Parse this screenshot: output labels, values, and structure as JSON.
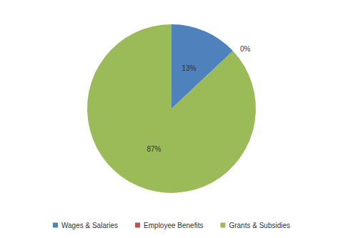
{
  "chart_data": {
    "type": "pie",
    "categories": [
      "Wages & Salaries",
      "Employee Benefits",
      "Grants & Subsidies"
    ],
    "values": [
      13,
      0,
      87
    ],
    "value_labels": [
      "13%",
      "0%",
      "87%"
    ],
    "colors": [
      "#4f81bd",
      "#c0504d",
      "#9bbb59"
    ],
    "data_labels": true,
    "legend": "bottom"
  }
}
